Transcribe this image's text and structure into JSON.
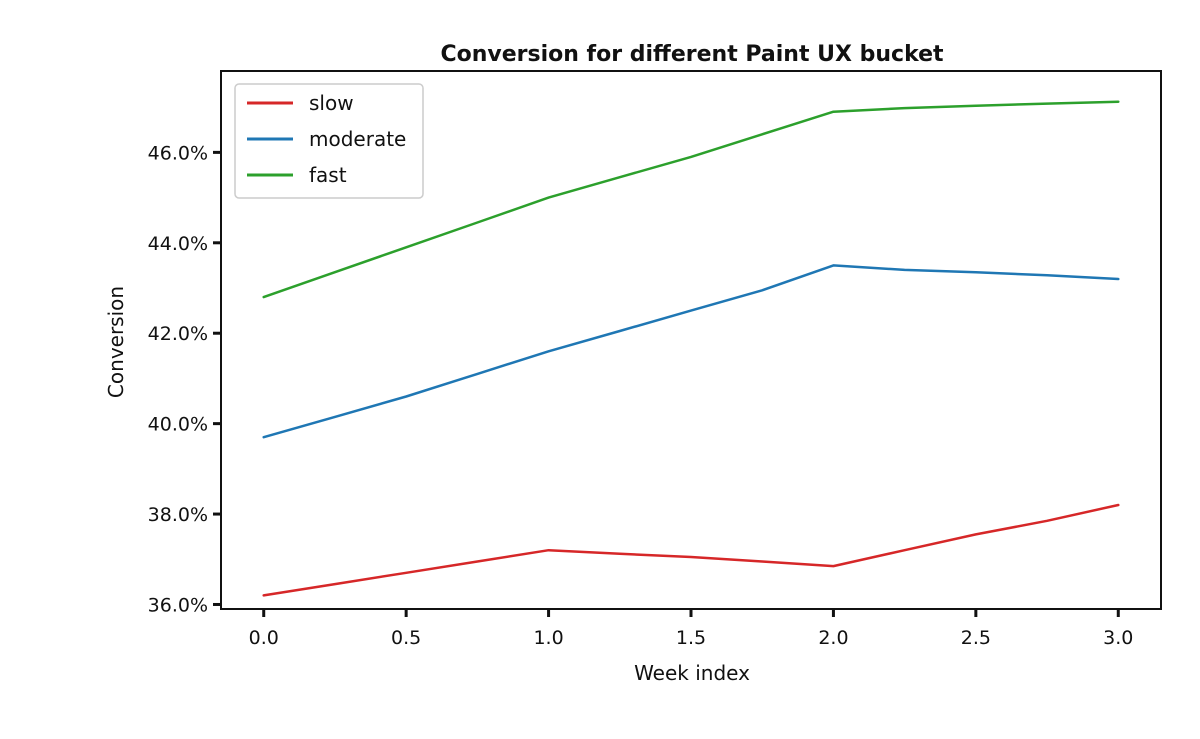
{
  "chart_data": {
    "type": "line",
    "title": "Conversion for different Paint UX bucket",
    "xlabel": "Week index",
    "ylabel": "Conversion",
    "xlim": [
      -0.15,
      3.15
    ],
    "ylim": [
      35.9,
      47.8
    ],
    "xticks": [
      0.0,
      0.5,
      1.0,
      1.5,
      2.0,
      2.5,
      3.0
    ],
    "xtick_labels": [
      "0.0",
      "0.5",
      "1.0",
      "1.5",
      "2.0",
      "2.5",
      "3.0"
    ],
    "yticks": [
      36.0,
      38.0,
      40.0,
      42.0,
      44.0,
      46.0
    ],
    "ytick_labels": [
      "36.0%",
      "38.0%",
      "40.0%",
      "42.0%",
      "44.0%",
      "46.0%"
    ],
    "grid": false,
    "legend_position": "top-left",
    "x": [
      0.0,
      0.25,
      0.5,
      0.75,
      1.0,
      1.25,
      1.5,
      1.75,
      2.0,
      2.25,
      2.5,
      2.75,
      3.0
    ],
    "series": [
      {
        "name": "slow",
        "color": "#d62728",
        "values": [
          36.2,
          36.45,
          36.7,
          36.95,
          37.2,
          37.12,
          37.05,
          36.95,
          36.85,
          37.2,
          37.55,
          37.85,
          38.2
        ]
      },
      {
        "name": "moderate",
        "color": "#1f77b4",
        "values": [
          39.7,
          40.15,
          40.6,
          41.1,
          41.6,
          42.05,
          42.5,
          42.95,
          43.5,
          43.4,
          43.35,
          43.28,
          43.2
        ]
      },
      {
        "name": "fast",
        "color": "#2ca02c",
        "values": [
          42.8,
          43.35,
          43.9,
          44.45,
          45.0,
          45.45,
          45.9,
          46.4,
          46.9,
          46.98,
          47.03,
          47.08,
          47.12
        ]
      }
    ]
  }
}
